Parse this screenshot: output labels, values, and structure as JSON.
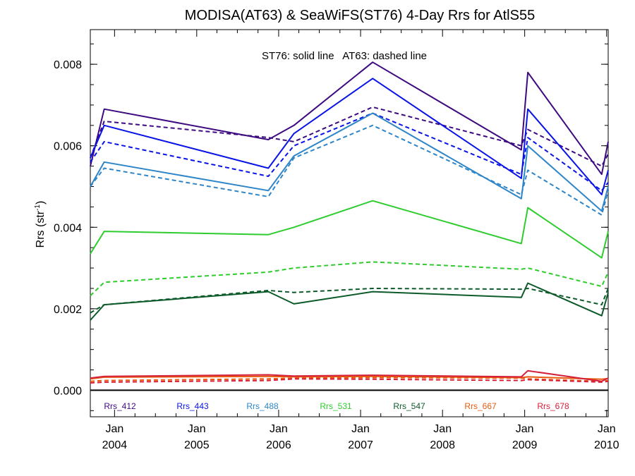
{
  "chart_data": {
    "type": "line",
    "title": "MODISA(AT63) & SeaWiFS(ST76) 4-Day Rrs for AtlS55",
    "annotation": "ST76: solid line   AT63: dashed line",
    "ylabel": "Rrs (str",
    "ylabel_sup": "-1",
    "ylabel_close": ")",
    "xlabel": "",
    "xlim": [
      "2003-09-15",
      "2010-01-08"
    ],
    "ylim": [
      -0.00065,
      0.00885
    ],
    "y_ticks": [
      0.0,
      0.002,
      0.004,
      0.006,
      0.008
    ],
    "y_tick_labels": [
      "0.000",
      "0.002",
      "0.004",
      "0.006",
      "0.008"
    ],
    "x_ticks": [
      {
        "date": "2004-01-01",
        "line1": "Jan",
        "line2": "2004"
      },
      {
        "date": "2005-01-01",
        "line1": "Jan",
        "line2": "2005"
      },
      {
        "date": "2006-01-01",
        "line1": "Jan",
        "line2": "2006"
      },
      {
        "date": "2007-01-01",
        "line1": "Jan",
        "line2": "2007"
      },
      {
        "date": "2008-01-01",
        "line1": "Jan",
        "line2": "2008"
      },
      {
        "date": "2009-01-01",
        "line1": "Jan",
        "line2": "2009"
      },
      {
        "date": "2010-01-01",
        "line1": "Jan",
        "line2": "2010"
      }
    ],
    "grid": false,
    "legend_placement": "bottom",
    "series": [
      {
        "name": "Rrs_412",
        "sensor": "ST76",
        "style": "solid",
        "color": "#3d0a80",
        "x": [
          "2003-09-15",
          "2003-11-16",
          "2005-11-16",
          "2006-03-10",
          "2007-02-24",
          "2008-12-17",
          "2009-01-15",
          "2009-12-10",
          "2010-01-08"
        ],
        "y": [
          0.0055,
          0.0069,
          0.00615,
          0.0065,
          0.00805,
          0.0059,
          0.0078,
          0.0053,
          0.0061
        ]
      },
      {
        "name": "Rrs_412",
        "sensor": "AT63",
        "style": "dashed",
        "color": "#3d0a80",
        "x": [
          "2003-09-15",
          "2003-11-16",
          "2005-11-16",
          "2006-03-10",
          "2007-02-24",
          "2008-12-17",
          "2009-01-15",
          "2009-12-10",
          "2010-01-08"
        ],
        "y": [
          0.0057,
          0.0066,
          0.0062,
          0.0061,
          0.00695,
          0.006,
          0.0064,
          0.0055,
          0.0058
        ]
      },
      {
        "name": "Rrs_443",
        "sensor": "ST76",
        "style": "solid",
        "color": "#0a14e6",
        "x": [
          "2003-09-15",
          "2003-11-16",
          "2005-11-16",
          "2006-03-10",
          "2007-02-24",
          "2008-12-17",
          "2009-01-15",
          "2009-12-10",
          "2010-01-08"
        ],
        "y": [
          0.0057,
          0.0065,
          0.00545,
          0.0063,
          0.00765,
          0.0052,
          0.0069,
          0.0048,
          0.0054
        ]
      },
      {
        "name": "Rrs_443",
        "sensor": "AT63",
        "style": "dashed",
        "color": "#0a14e6",
        "x": [
          "2003-09-15",
          "2003-11-16",
          "2005-11-16",
          "2006-03-10",
          "2007-02-24",
          "2008-12-17",
          "2009-01-15",
          "2009-12-10",
          "2010-01-08"
        ],
        "y": [
          0.0056,
          0.0061,
          0.00525,
          0.006,
          0.0068,
          0.0053,
          0.0062,
          0.0049,
          0.0051
        ]
      },
      {
        "name": "Rrs_488",
        "sensor": "ST76",
        "style": "solid",
        "color": "#2e86c8",
        "x": [
          "2003-09-15",
          "2003-11-16",
          "2005-11-16",
          "2006-03-10",
          "2007-02-24",
          "2008-12-17",
          "2009-01-15",
          "2009-12-10",
          "2010-01-08"
        ],
        "y": [
          0.005,
          0.0056,
          0.0049,
          0.00575,
          0.0068,
          0.0047,
          0.006,
          0.0044,
          0.005
        ]
      },
      {
        "name": "Rrs_488",
        "sensor": "AT63",
        "style": "dashed",
        "color": "#2e86c8",
        "x": [
          "2003-09-15",
          "2003-11-16",
          "2005-11-16",
          "2006-03-10",
          "2007-02-24",
          "2008-12-17",
          "2009-01-15",
          "2009-12-10",
          "2010-01-08"
        ],
        "y": [
          0.005,
          0.00545,
          0.00475,
          0.0057,
          0.0065,
          0.0048,
          0.0054,
          0.0043,
          0.0049
        ]
      },
      {
        "name": "Rrs_531",
        "sensor": "ST76",
        "style": "solid",
        "color": "#2ecc2e",
        "x": [
          "2003-09-15",
          "2003-11-16",
          "2005-11-16",
          "2006-03-10",
          "2007-02-24",
          "2008-12-17",
          "2009-01-15",
          "2009-12-10",
          "2010-01-08"
        ],
        "y": [
          0.00335,
          0.0039,
          0.00382,
          0.004,
          0.00465,
          0.0036,
          0.00448,
          0.00325,
          0.0039
        ]
      },
      {
        "name": "Rrs_531",
        "sensor": "AT63",
        "style": "dashed",
        "color": "#2ecc2e",
        "x": [
          "2003-09-15",
          "2003-11-16",
          "2005-11-16",
          "2006-03-10",
          "2007-02-24",
          "2008-12-17",
          "2009-01-15",
          "2009-12-10",
          "2010-01-08"
        ],
        "y": [
          0.00232,
          0.00265,
          0.0029,
          0.003,
          0.00315,
          0.00297,
          0.003,
          0.00255,
          0.0029
        ]
      },
      {
        "name": "Rrs_547",
        "sensor": "ST76",
        "style": "solid",
        "color": "#0d5a2a",
        "x": [
          "2003-09-15",
          "2003-11-16",
          "2005-11-16",
          "2006-03-10",
          "2007-02-24",
          "2008-12-17",
          "2009-01-15",
          "2009-12-10",
          "2010-01-08"
        ],
        "y": [
          0.00172,
          0.0021,
          0.00242,
          0.00212,
          0.00242,
          0.00228,
          0.00263,
          0.00183,
          0.0024
        ]
      },
      {
        "name": "Rrs_547",
        "sensor": "AT63",
        "style": "dashed",
        "color": "#0d5a2a",
        "x": [
          "2003-09-15",
          "2003-11-16",
          "2005-11-16",
          "2006-03-10",
          "2007-02-24",
          "2008-12-17",
          "2009-01-15",
          "2009-12-10",
          "2010-01-08"
        ],
        "y": [
          0.0019,
          0.0021,
          0.00245,
          0.0024,
          0.0025,
          0.00248,
          0.0025,
          0.0021,
          0.0025
        ]
      },
      {
        "name": "Rrs_667",
        "sensor": "ST76",
        "style": "solid",
        "color": "#e85a10",
        "x": [
          "2003-09-15",
          "2003-11-16",
          "2005-11-16",
          "2006-03-10",
          "2007-02-24",
          "2008-12-17",
          "2009-01-15",
          "2009-12-10",
          "2010-01-08"
        ],
        "y": [
          0.00028,
          0.00032,
          0.00034,
          0.00033,
          0.00034,
          0.00031,
          0.00033,
          0.00027,
          0.00029
        ]
      },
      {
        "name": "Rrs_667",
        "sensor": "AT63",
        "style": "dashed",
        "color": "#e85a10",
        "x": [
          "2003-09-15",
          "2003-11-16",
          "2005-11-16",
          "2006-03-10",
          "2007-02-24",
          "2008-12-17",
          "2009-01-15",
          "2009-12-10",
          "2010-01-08"
        ],
        "y": [
          0.00022,
          0.00024,
          0.00028,
          0.0003,
          0.00031,
          0.0003,
          0.00028,
          0.00022,
          0.00024
        ]
      },
      {
        "name": "Rrs_678",
        "sensor": "ST76",
        "style": "solid",
        "color": "#d4203a",
        "x": [
          "2003-09-15",
          "2003-11-16",
          "2005-11-16",
          "2006-03-10",
          "2007-02-24",
          "2008-12-17",
          "2009-01-15",
          "2009-12-10",
          "2010-01-08"
        ],
        "y": [
          0.0003,
          0.00034,
          0.00038,
          0.00035,
          0.00037,
          0.00033,
          0.00048,
          0.00022,
          0.0003
        ]
      },
      {
        "name": "Rrs_678",
        "sensor": "AT63",
        "style": "dashed",
        "color": "#d4203a",
        "x": [
          "2003-09-15",
          "2003-11-16",
          "2005-11-16",
          "2006-03-10",
          "2007-02-24",
          "2008-12-17",
          "2009-01-15",
          "2009-12-10",
          "2010-01-08"
        ],
        "y": [
          0.00018,
          0.0002,
          0.00024,
          0.00028,
          0.00027,
          0.00024,
          0.00026,
          0.0002,
          0.00022
        ]
      }
    ],
    "legend": [
      {
        "label": "Rrs_412",
        "color": "#3d0a80"
      },
      {
        "label": "Rrs_443",
        "color": "#0a14e6"
      },
      {
        "label": "Rrs_488",
        "color": "#2e86c8"
      },
      {
        "label": "Rrs_531",
        "color": "#2ecc2e"
      },
      {
        "label": "Rrs_547",
        "color": "#0d5a2a"
      },
      {
        "label": "Rrs_667",
        "color": "#e85a10"
      },
      {
        "label": "Rrs_678",
        "color": "#d4203a"
      }
    ]
  }
}
